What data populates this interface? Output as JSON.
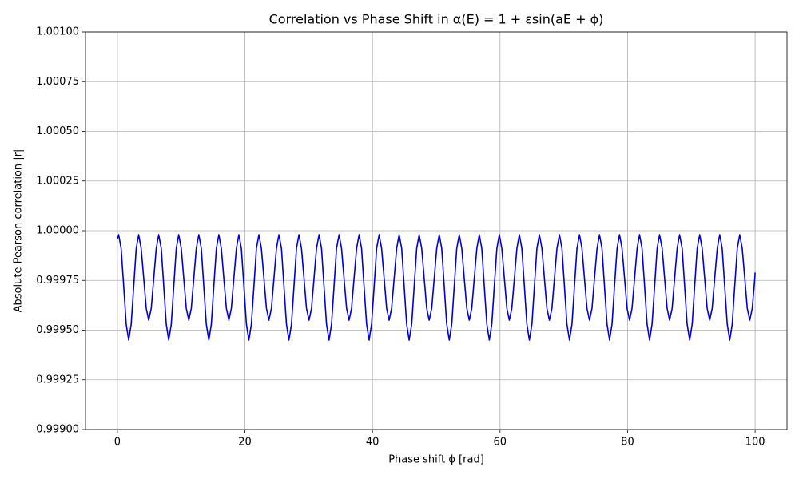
{
  "chart_data": {
    "type": "line",
    "title": "Correlation vs Phase Shift in α(E) = 1 + εsin(aE + ϕ)",
    "x_label": "Phase shift ϕ [rad]",
    "y_label": "Absolute Pearson correlation |r|",
    "xlim": [
      -5,
      105
    ],
    "xticks": [
      0,
      20,
      40,
      60,
      80,
      100
    ],
    "ylim": [
      0.999,
      1.001
    ],
    "yticks": [
      {
        "value": 0.999,
        "label": "0.99900"
      },
      {
        "value": 0.99925,
        "label": "0.99925"
      },
      {
        "value": 0.9995,
        "label": "0.99950"
      },
      {
        "value": 0.99975,
        "label": "0.99975"
      },
      {
        "value": 1,
        "label": "1.00000"
      },
      {
        "value": 1.00025,
        "label": "1.00025"
      },
      {
        "value": 1.0005,
        "label": "1.00050"
      },
      {
        "value": 1.00075,
        "label": "1.00075"
      },
      {
        "value": 1.001,
        "label": "1.00100"
      }
    ],
    "grid": true,
    "color": "#0000dd",
    "x": [
      0,
      0.2,
      0.59,
      0.99,
      1.38,
      1.77,
      2.16,
      2.56,
      2.95,
      3.34,
      3.73,
      4.13,
      4.52,
      4.91,
      5.31,
      5.7,
      6.09,
      6.48,
      6.88,
      7.27,
      7.66,
      8.05,
      8.45,
      8.84,
      9.23,
      9.62,
      10.02,
      10.41,
      10.8,
      11.2,
      11.59,
      11.98,
      12.37,
      12.77,
      13.16,
      13.55,
      13.94,
      14.34,
      14.73,
      15.12,
      15.52,
      15.91,
      16.3,
      16.69,
      17.09,
      17.48,
      17.87,
      18.26,
      18.66,
      19.05,
      19.44,
      19.84,
      20.23,
      20.62,
      21.01,
      21.41,
      21.8,
      22.19,
      22.58,
      22.98,
      23.37,
      23.76,
      24.15,
      24.55,
      24.94,
      25.33,
      25.73,
      26.12,
      26.51,
      26.9,
      27.3,
      27.69,
      28.08,
      28.47,
      28.87,
      29.26,
      29.65,
      30.05,
      30.44,
      30.83,
      31.22,
      31.62,
      32.01,
      32.4,
      32.79,
      33.19,
      33.58,
      33.97,
      34.36,
      34.76,
      35.15,
      35.54,
      35.94,
      36.33,
      36.72,
      37.11,
      37.51,
      37.9,
      38.29,
      38.68,
      39.08,
      39.47,
      39.86,
      40.26,
      40.65,
      41.04,
      41.43,
      41.83,
      42.22,
      42.61,
      43.0,
      43.4,
      43.79,
      44.18,
      44.58,
      44.97,
      45.36,
      45.75,
      46.15,
      46.54,
      46.93,
      47.32,
      47.72,
      48.11,
      48.5,
      48.89,
      49.29,
      49.68,
      50.07,
      50.47,
      50.86,
      51.25,
      51.64,
      52.04,
      52.43,
      52.82,
      53.21,
      53.61,
      54.0,
      54.39,
      54.79,
      55.18,
      55.57,
      55.96,
      56.36,
      56.75,
      57.14,
      57.53,
      57.93,
      58.32,
      58.71,
      59.1,
      59.5,
      59.89,
      60.28,
      60.68,
      61.07,
      61.46,
      61.85,
      62.25,
      62.64,
      63.03,
      63.42,
      63.82,
      64.21,
      64.6,
      65.0,
      65.39,
      65.78,
      66.17,
      66.57,
      66.96,
      67.35,
      67.74,
      68.14,
      68.53,
      68.92,
      69.32,
      69.71,
      70.1,
      70.49,
      70.89,
      71.28,
      71.67,
      72.06,
      72.46,
      72.85,
      73.24,
      73.63,
      74.03,
      74.42,
      74.81,
      75.21,
      75.6,
      75.99,
      76.38,
      76.78,
      77.17,
      77.56,
      77.95,
      78.35,
      78.74,
      79.13,
      79.53,
      79.92,
      80.31,
      80.7,
      81.1,
      81.49,
      81.88,
      82.27,
      82.67,
      83.06,
      83.45,
      83.84,
      84.24,
      84.63,
      85.02,
      85.42,
      85.81,
      86.2,
      86.59,
      86.99,
      87.38,
      87.77,
      88.16,
      88.56,
      88.95,
      89.34,
      89.74,
      90.13,
      90.52,
      90.91,
      91.31,
      91.7,
      92.09,
      92.48,
      92.88,
      93.27,
      93.66,
      94.06,
      94.45,
      94.84,
      95.23,
      95.63,
      96.02,
      96.41,
      96.8,
      97.2,
      97.59,
      97.98,
      98.38,
      98.77,
      99.16,
      99.55,
      99.95,
      100
    ],
    "values": [
      0.99996,
      0.99998,
      0.99991,
      0.99972,
      0.99953,
      0.99945,
      0.99953,
      0.99972,
      0.99991,
      0.99998,
      0.99991,
      0.99976,
      0.99961,
      0.99955,
      0.99961,
      0.99976,
      0.99991,
      0.99998,
      0.99991,
      0.99972,
      0.99953,
      0.99945,
      0.99953,
      0.99972,
      0.99991,
      0.99998,
      0.99991,
      0.99976,
      0.99961,
      0.99955,
      0.99961,
      0.99976,
      0.99991,
      0.99998,
      0.99991,
      0.99972,
      0.99953,
      0.99945,
      0.99953,
      0.99972,
      0.99991,
      0.99998,
      0.99991,
      0.99976,
      0.99961,
      0.99955,
      0.99961,
      0.99976,
      0.99991,
      0.99998,
      0.99991,
      0.99972,
      0.99953,
      0.99945,
      0.99953,
      0.99972,
      0.99991,
      0.99998,
      0.99991,
      0.99976,
      0.99961,
      0.99955,
      0.99961,
      0.99976,
      0.99991,
      0.99998,
      0.99991,
      0.99972,
      0.99953,
      0.99945,
      0.99953,
      0.99972,
      0.99991,
      0.99998,
      0.99991,
      0.99976,
      0.99961,
      0.99955,
      0.99961,
      0.99976,
      0.99991,
      0.99998,
      0.99991,
      0.99972,
      0.99953,
      0.99945,
      0.99953,
      0.99972,
      0.99991,
      0.99998,
      0.99991,
      0.99976,
      0.99961,
      0.99955,
      0.99961,
      0.99976,
      0.99991,
      0.99998,
      0.99991,
      0.99972,
      0.99953,
      0.99945,
      0.99953,
      0.99972,
      0.99991,
      0.99998,
      0.99991,
      0.99976,
      0.99961,
      0.99955,
      0.99961,
      0.99976,
      0.99991,
      0.99998,
      0.99991,
      0.99972,
      0.99953,
      0.99945,
      0.99953,
      0.99972,
      0.99991,
      0.99998,
      0.99991,
      0.99976,
      0.99961,
      0.99955,
      0.99961,
      0.99976,
      0.99991,
      0.99998,
      0.99991,
      0.99972,
      0.99953,
      0.99945,
      0.99953,
      0.99972,
      0.99991,
      0.99998,
      0.99991,
      0.99976,
      0.99961,
      0.99955,
      0.99961,
      0.99976,
      0.99991,
      0.99998,
      0.99991,
      0.99972,
      0.99953,
      0.99945,
      0.99953,
      0.99972,
      0.99991,
      0.99998,
      0.99991,
      0.99976,
      0.99961,
      0.99955,
      0.99961,
      0.99976,
      0.99991,
      0.99998,
      0.99991,
      0.99972,
      0.99953,
      0.99945,
      0.99953,
      0.99972,
      0.99991,
      0.99998,
      0.99991,
      0.99976,
      0.99961,
      0.99955,
      0.99961,
      0.99976,
      0.99991,
      0.99998,
      0.99991,
      0.99972,
      0.99953,
      0.99945,
      0.99953,
      0.99972,
      0.99991,
      0.99998,
      0.99991,
      0.99976,
      0.99961,
      0.99955,
      0.99961,
      0.99976,
      0.99991,
      0.99998,
      0.99991,
      0.99972,
      0.99953,
      0.99945,
      0.99953,
      0.99972,
      0.99991,
      0.99998,
      0.99991,
      0.99976,
      0.99961,
      0.99955,
      0.99961,
      0.99976,
      0.99991,
      0.99998,
      0.99991,
      0.99972,
      0.99953,
      0.99945,
      0.99953,
      0.99972,
      0.99991,
      0.99998,
      0.99991,
      0.99976,
      0.99961,
      0.99955,
      0.99961,
      0.99976,
      0.99991,
      0.99998,
      0.99991,
      0.99972,
      0.99953,
      0.99945,
      0.99953,
      0.99972,
      0.99991,
      0.99998,
      0.99991,
      0.99976,
      0.99961,
      0.99955,
      0.99961,
      0.99976,
      0.99991,
      0.99998,
      0.99991,
      0.99972,
      0.99953,
      0.99945,
      0.99953,
      0.99972,
      0.99991,
      0.99998,
      0.99991,
      0.99976,
      0.99961,
      0.99955,
      0.99961,
      0.99976,
      0.99979
    ]
  }
}
